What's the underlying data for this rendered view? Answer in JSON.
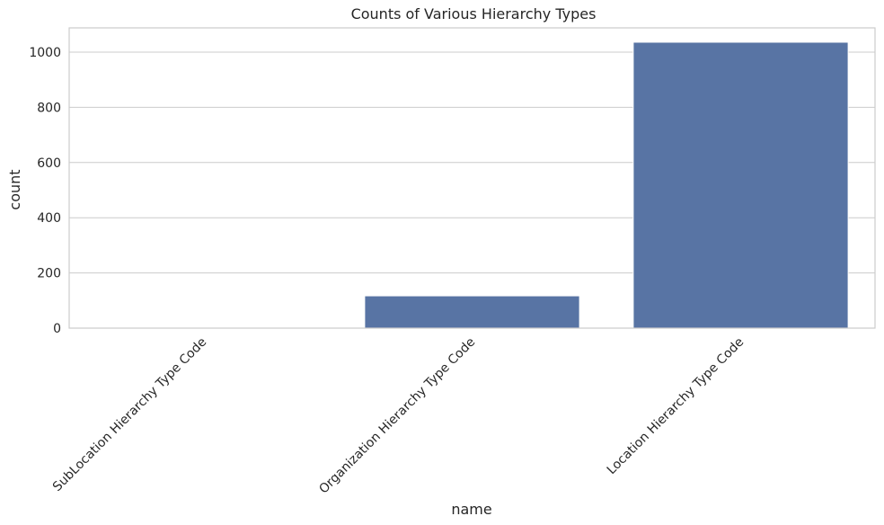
{
  "chart_data": {
    "type": "bar",
    "title": "Counts of Various Hierarchy Types",
    "xlabel": "name",
    "ylabel": "count",
    "categories": [
      "SubLocation Hierarchy Type Code",
      "Organization Hierarchy Type Code",
      "Location Hierarchy Type Code"
    ],
    "values": [
      3,
      117,
      1036
    ],
    "ylim": [
      0,
      1088
    ],
    "yticks": [
      0,
      200,
      400,
      600,
      800,
      1000
    ],
    "grid": true,
    "bar_color": "#5874a4",
    "legend": "none"
  }
}
